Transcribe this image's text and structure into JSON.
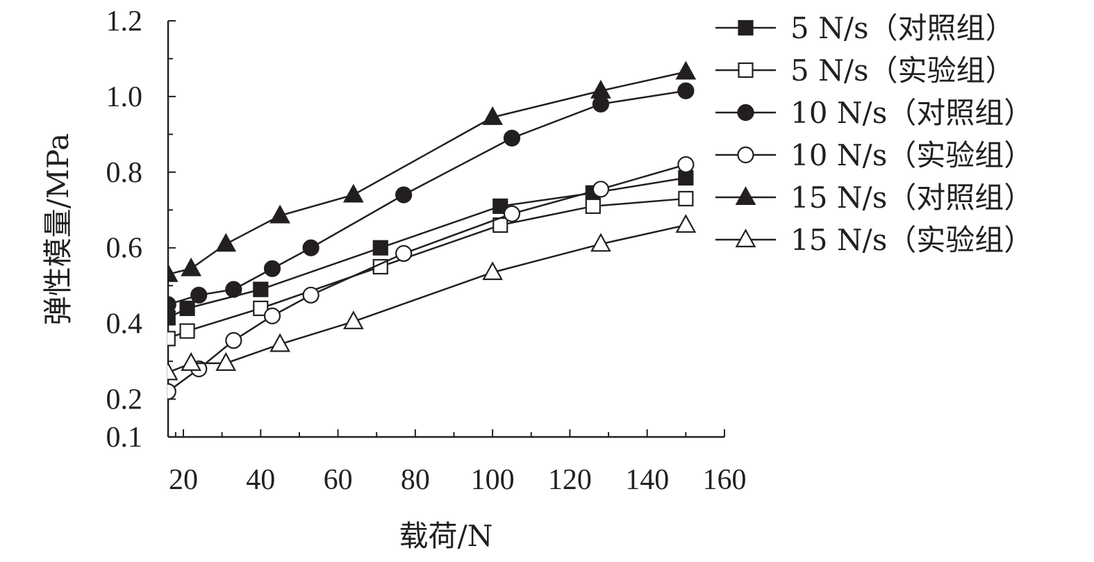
{
  "chart_data": {
    "type": "line",
    "xlabel": "载荷/N",
    "ylabel": "弹性模量/MPa",
    "xlim": [
      16,
      160
    ],
    "ylim": [
      0.1,
      1.2
    ],
    "xticks": [
      20,
      40,
      60,
      80,
      100,
      120,
      140,
      160
    ],
    "xtick_labels": [
      "20",
      "40",
      "60",
      "80",
      "100",
      "120",
      "140",
      "160"
    ],
    "yticks": [
      0.1,
      0.2,
      0.4,
      0.6,
      0.8,
      1.0,
      1.2
    ],
    "ytick_labels": [
      "0.1",
      "0.2",
      "0.4",
      "0.6",
      "0.8",
      "1.0",
      "1.2"
    ],
    "grid": false,
    "legend_position": "top-right",
    "colors": {
      "ink": "#231f20",
      "open_fill": "#ffffff"
    },
    "series": [
      {
        "name": "5 N/s（对照组）",
        "marker": "square-filled",
        "x": [
          16,
          21,
          40,
          71,
          102,
          126,
          150
        ],
        "y": [
          0.415,
          0.44,
          0.49,
          0.6,
          0.71,
          0.745,
          0.785
        ]
      },
      {
        "name": "5 N/s（实验组）",
        "marker": "square-open",
        "x": [
          16,
          21,
          40,
          71,
          102,
          126,
          150
        ],
        "y": [
          0.36,
          0.38,
          0.44,
          0.55,
          0.66,
          0.71,
          0.73
        ]
      },
      {
        "name": "10 N/s（对照组）",
        "marker": "circle-filled",
        "x": [
          16,
          24,
          33,
          43,
          53,
          77,
          105,
          128,
          150
        ],
        "y": [
          0.45,
          0.475,
          0.49,
          0.545,
          0.6,
          0.74,
          0.89,
          0.98,
          1.015
        ]
      },
      {
        "name": "10 N/s（实验组）",
        "marker": "circle-open",
        "x": [
          16,
          24,
          33,
          43,
          53,
          77,
          105,
          128,
          150
        ],
        "y": [
          0.22,
          0.28,
          0.355,
          0.42,
          0.475,
          0.585,
          0.69,
          0.755,
          0.82
        ]
      },
      {
        "name": "15 N/s（对照组）",
        "marker": "triangle-filled",
        "x": [
          16,
          22,
          31,
          45,
          64,
          100,
          128,
          150
        ],
        "y": [
          0.53,
          0.545,
          0.61,
          0.685,
          0.74,
          0.945,
          1.015,
          1.065
        ]
      },
      {
        "name": "15 N/s（实验组）",
        "marker": "triangle-open",
        "x": [
          16,
          22,
          31,
          45,
          64,
          100,
          128,
          150
        ],
        "y": [
          0.27,
          0.295,
          0.295,
          0.345,
          0.405,
          0.535,
          0.61,
          0.66
        ]
      }
    ]
  }
}
